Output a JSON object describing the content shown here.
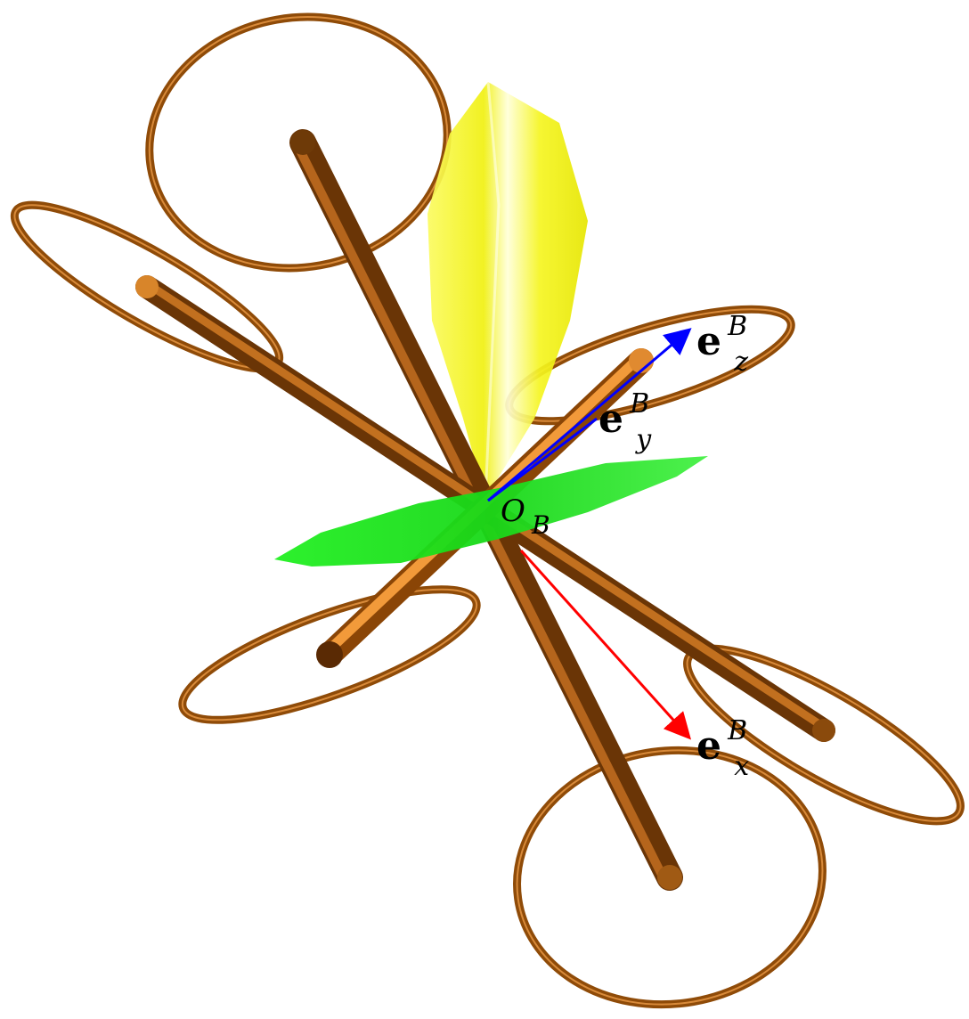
{
  "figure": {
    "labels": {
      "ex": {
        "base": "e",
        "sub": "x",
        "sup": "B"
      },
      "ey": {
        "base": "e",
        "sub": "y",
        "sup": "B"
      },
      "ez": {
        "base": "e",
        "sub": "z",
        "sup": "B"
      },
      "origin": {
        "base": "O",
        "sub": "B"
      }
    },
    "colors": {
      "frame": "#8a4a0c",
      "frame_light": "#d07a1c",
      "ring": "#9a5208",
      "axis_x": "#ff0000",
      "axis_y": "#0000ff",
      "axis_z": "#0000ff",
      "yellow_cone": "#f2f21a",
      "green_disc": "#22ee22"
    }
  }
}
